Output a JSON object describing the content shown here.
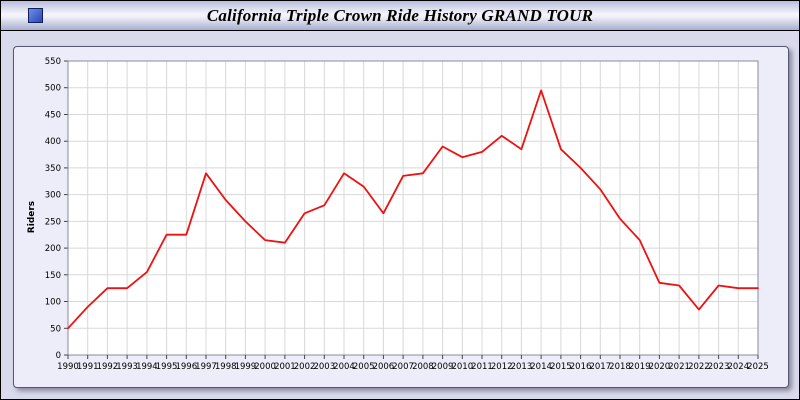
{
  "header": {
    "title": "California Triple Crown Ride History GRAND TOUR"
  },
  "chart_data": {
    "type": "line",
    "title": "California Triple Crown Ride History GRAND TOUR",
    "xlabel": "",
    "ylabel": "Riders",
    "ylim": [
      0,
      550
    ],
    "ytick_step": 50,
    "grid": true,
    "legend": "none",
    "plot_bg": "#ffffff",
    "grid_color": "#d8d8d8",
    "frame_color": "#8a8a9a",
    "x": [
      1990,
      1991,
      1992,
      1993,
      1994,
      1995,
      1996,
      1997,
      1998,
      1999,
      2000,
      2001,
      2002,
      2003,
      2004,
      2005,
      2006,
      2007,
      2008,
      2009,
      2010,
      2011,
      2012,
      2013,
      2014,
      2015,
      2016,
      2017,
      2018,
      2019,
      2020,
      2021,
      2022,
      2023,
      2024,
      2025
    ],
    "series": [
      {
        "name": "Riders",
        "color": "#ee1111",
        "values": [
          50,
          90,
          125,
          125,
          155,
          225,
          225,
          340,
          290,
          250,
          215,
          210,
          265,
          280,
          340,
          315,
          265,
          335,
          340,
          390,
          370,
          380,
          410,
          385,
          495,
          385,
          350,
          310,
          255,
          215,
          135,
          130,
          85,
          130,
          125,
          125
        ]
      }
    ]
  }
}
